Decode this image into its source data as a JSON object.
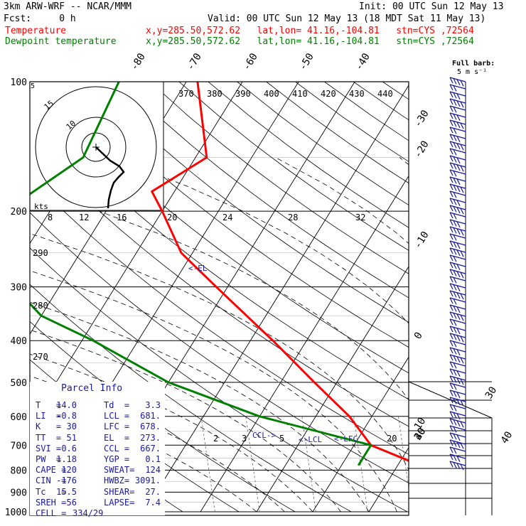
{
  "header": {
    "title": "3km ARW-WRF -- NCAR/MMM",
    "init": "Init: 00 UTC Sun 12 May 13",
    "fcst": "Fcst:     0 h",
    "valid": "Valid: 00 UTC Sun 12 May 13 (18 MDT Sat 11 May 13)"
  },
  "legend": [
    {
      "name": "Temperature",
      "loc": "x,y=285.50,572.62   lat,lon= 41.16,-104.81   stn=CYS ,72564",
      "color": "#ff0000"
    },
    {
      "name": "Dewpoint temperature",
      "loc": "x,y=285.50,572.62   lat,lon= 41.16,-104.81   stn=CYS ,72564",
      "color": "#008000"
    }
  ],
  "barb_label": "Full barb:",
  "barb_unit": "5 m s⁻¹",
  "hodo_unit": "kts",
  "el_label": "<-EL",
  "lcl_label": "<-LCL",
  "lfc_label": "<-LFC",
  "ccl_label": "CCL->",
  "parcel": {
    "title": "Parcel Info",
    "rows": [
      [
        "T   =",
        "14.0",
        "Td  =",
        "3.3"
      ],
      [
        "LI  =",
        "-0.8",
        "LCL =",
        "681."
      ],
      [
        "K   =",
        "30",
        "LFC =",
        "678."
      ],
      [
        "TT  =",
        "51",
        "EL  =",
        "273."
      ],
      [
        "SVI =",
        "0.6",
        "CCL =",
        "667."
      ],
      [
        "PW  =",
        "1.18",
        "YGP =",
        "0.1"
      ],
      [
        "CAPE =",
        "120",
        "SWEAT=",
        "124"
      ],
      [
        "CIN  =",
        "-176",
        "HWBZ=",
        "3091."
      ],
      [
        "Tc   =",
        "15.5",
        "SHEAR=",
        "27."
      ],
      [
        "SREH =",
        "56",
        "LAPSE=",
        "7.4"
      ],
      [
        "CELL =",
        "334/29",
        "",
        ""
      ]
    ]
  },
  "chart_data": {
    "type": "skew-t log-p",
    "pressure_ticks": [
      100,
      200,
      300,
      400,
      500,
      600,
      700,
      800,
      900,
      1000
    ],
    "isotherm_labels": [
      -80,
      -70,
      -60,
      -50,
      -40,
      -30,
      -20,
      -10,
      0,
      10,
      20,
      30,
      40
    ],
    "theta_labels": [
      290,
      280,
      270
    ],
    "theta_top_labels": [
      370,
      380,
      390,
      400,
      410,
      420,
      430,
      440
    ],
    "mixing_ratio_labels": [
      2,
      3,
      5,
      8,
      12,
      16,
      20,
      24,
      28,
      32
    ],
    "series": [
      {
        "name": "Temperature",
        "color": "#ff0000",
        "points": [
          [
            100,
            -68
          ],
          [
            150,
            -58
          ],
          [
            180,
            -64
          ],
          [
            200,
            -60
          ],
          [
            250,
            -52
          ],
          [
            300,
            -42
          ],
          [
            400,
            -26
          ],
          [
            500,
            -14
          ],
          [
            600,
            -4
          ],
          [
            700,
            3
          ],
          [
            780,
            14
          ]
        ]
      },
      {
        "name": "Dewpoint temperature",
        "color": "#008000",
        "points": [
          [
            100,
            -82
          ],
          [
            150,
            -80
          ],
          [
            200,
            -88
          ],
          [
            250,
            -84
          ],
          [
            300,
            -78
          ],
          [
            350,
            -70
          ],
          [
            400,
            -58
          ],
          [
            500,
            -40
          ],
          [
            600,
            -20
          ],
          [
            700,
            3
          ],
          [
            780,
            3
          ]
        ]
      }
    ]
  }
}
